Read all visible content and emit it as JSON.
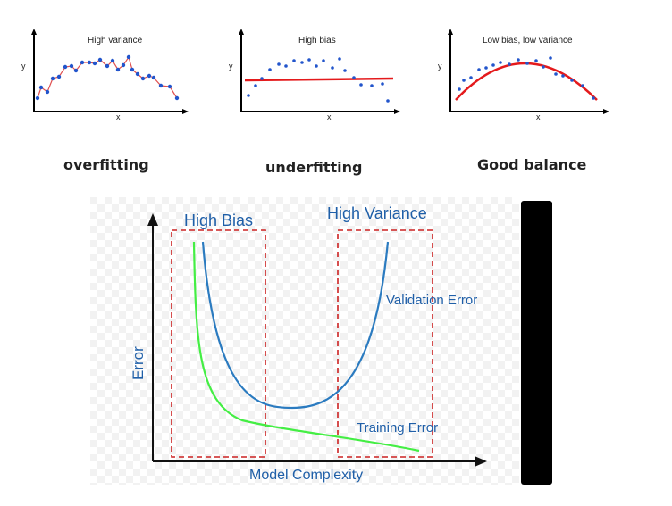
{
  "panels": [
    {
      "title": "High variance",
      "xlabel": "x",
      "ylabel": "y",
      "caption": "overfitting"
    },
    {
      "title": "High bias",
      "xlabel": "x",
      "ylabel": "y",
      "caption": "underfitting"
    },
    {
      "title": "Low bias, low variance",
      "xlabel": "x",
      "ylabel": "y",
      "caption": "Good balance"
    }
  ],
  "diagram": {
    "high_bias_label": "High Bias",
    "high_variance_label": "High Variance",
    "validation_label": "Validation Error",
    "training_label": "Training Error",
    "xlabel": "Model Complexity",
    "ylabel": "Error"
  },
  "colors": {
    "point": "#2255cc",
    "fit_line": "#e41a1c",
    "overfit_line": "#e05050",
    "validation": "#2b7bc0",
    "training": "#44ee44",
    "dashed_box": "#cc2222",
    "label_blue": "#1f5fa8"
  }
}
